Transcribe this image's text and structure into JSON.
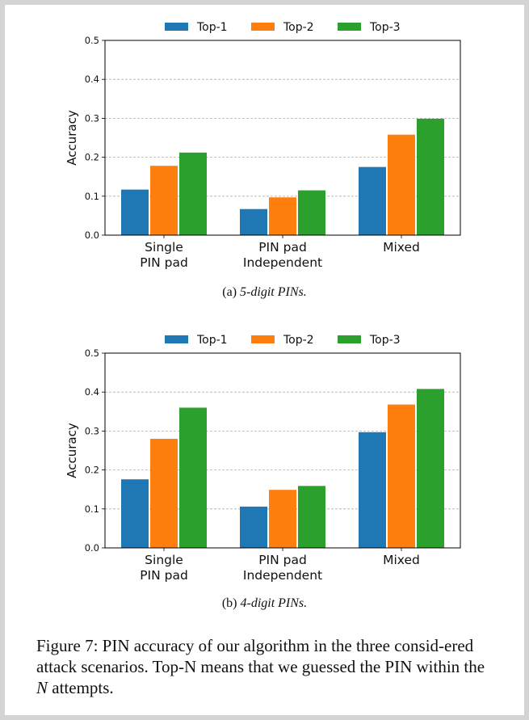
{
  "colors": {
    "Top-1": "#1f77b4",
    "Top-2": "#ff7f0e",
    "Top-3": "#2ca02c"
  },
  "chart_data": [
    {
      "type": "bar",
      "title": "",
      "caption_prefix": "(a) ",
      "caption_italic": "5-digit PINs.",
      "xlabel": "",
      "ylabel": "Accuracy",
      "ylim": [
        0,
        0.5
      ],
      "yticks": [
        "0.0",
        "0.1",
        "0.2",
        "0.3",
        "0.4",
        "0.5"
      ],
      "grid": true,
      "legend": "top-center",
      "categories": [
        [
          "Single",
          "PIN pad"
        ],
        [
          "PIN pad",
          "Independent"
        ],
        [
          "Mixed"
        ]
      ],
      "series": [
        {
          "name": "Top-1",
          "values": [
            0.117,
            0.067,
            0.175
          ]
        },
        {
          "name": "Top-2",
          "values": [
            0.178,
            0.097,
            0.258
          ]
        },
        {
          "name": "Top-3",
          "values": [
            0.212,
            0.115,
            0.299
          ]
        }
      ]
    },
    {
      "type": "bar",
      "title": "",
      "caption_prefix": "(b) ",
      "caption_italic": "4-digit PINs.",
      "xlabel": "",
      "ylabel": "Accuracy",
      "ylim": [
        0,
        0.5
      ],
      "yticks": [
        "0.0",
        "0.1",
        "0.2",
        "0.3",
        "0.4",
        "0.5"
      ],
      "grid": true,
      "legend": "top-center",
      "categories": [
        [
          "Single",
          "PIN pad"
        ],
        [
          "PIN pad",
          "Independent"
        ],
        [
          "Mixed"
        ]
      ],
      "series": [
        {
          "name": "Top-1",
          "values": [
            0.176,
            0.106,
            0.297
          ]
        },
        {
          "name": "Top-2",
          "values": [
            0.28,
            0.149,
            0.368
          ]
        },
        {
          "name": "Top-3",
          "values": [
            0.36,
            0.159,
            0.408
          ]
        }
      ]
    }
  ],
  "figure_caption": {
    "prefix": "Figure 7: PIN accuracy of our algorithm in the three consid-ered attack scenarios. Top-N means that we guessed the PIN within the ",
    "italic": "N",
    "suffix": " attempts."
  }
}
